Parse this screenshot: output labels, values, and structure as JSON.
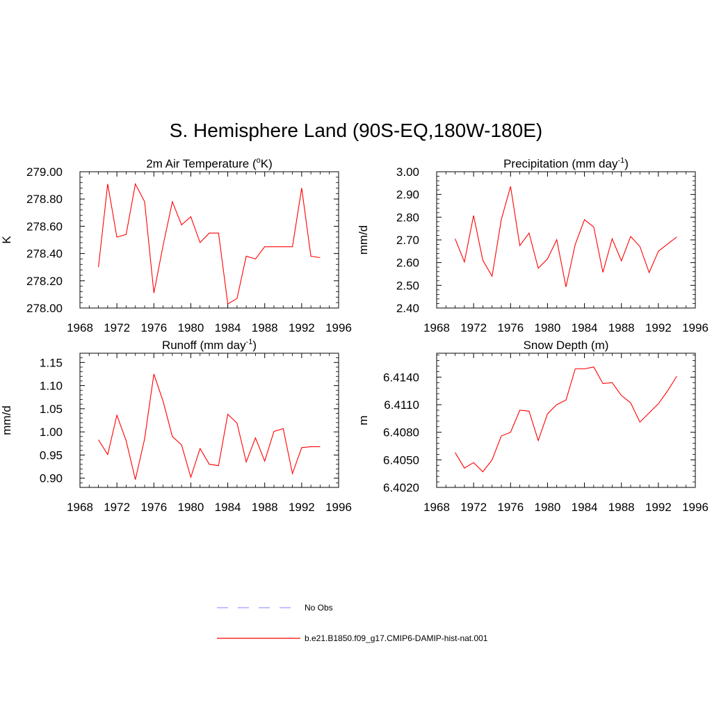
{
  "title": "S. Hemisphere Land (90S-EQ,180W-180E)",
  "legend": {
    "no_obs_label": "No Obs",
    "model_label": "b.e21.B1850.f09_g17.CMIP6-DAMIP-hist-nat.001",
    "no_obs_color": "#9a9aff",
    "model_color": "#ff0000"
  },
  "chart_data": [
    {
      "type": "line",
      "title": "2m Air Temperature (",
      "title_sup": "o",
      "title_tail": "K)",
      "title_sup_pos": "pre",
      "ylabel": "K",
      "xlim": [
        1968,
        1996
      ],
      "x_ticks": [
        1968,
        1972,
        1976,
        1980,
        1984,
        1988,
        1992,
        1996
      ],
      "ylim": [
        278.0,
        279.0
      ],
      "y_ticks": [
        278.0,
        278.2,
        278.4,
        278.6,
        278.8,
        279.0
      ],
      "y_tick_labels": [
        "278.00",
        "278.20",
        "278.40",
        "278.60",
        "278.80",
        "279.00"
      ],
      "x": [
        1970,
        1971,
        1972,
        1973,
        1974,
        1975,
        1976,
        1977,
        1978,
        1979,
        1980,
        1981,
        1982,
        1983,
        1984,
        1985,
        1986,
        1987,
        1988,
        1989,
        1990,
        1991,
        1992,
        1993,
        1994
      ],
      "series": [
        {
          "color": "#ff0000",
          "values": [
            278.3,
            278.91,
            278.52,
            278.54,
            278.91,
            278.78,
            278.11,
            278.46,
            278.78,
            278.61,
            278.67,
            278.48,
            278.55,
            278.55,
            278.03,
            278.07,
            278.38,
            278.36,
            278.45,
            278.45,
            278.45,
            278.45,
            278.88,
            278.38,
            278.37
          ]
        }
      ]
    },
    {
      "type": "line",
      "title": "Precipitation (mm day",
      "title_sup": "-1",
      "title_tail": ")",
      "ylabel": "mm/d",
      "xlim": [
        1968,
        1996
      ],
      "x_ticks": [
        1968,
        1972,
        1976,
        1980,
        1984,
        1988,
        1992,
        1996
      ],
      "ylim": [
        2.4,
        3.0
      ],
      "y_ticks": [
        2.4,
        2.5,
        2.6,
        2.7,
        2.8,
        2.9,
        3.0
      ],
      "y_tick_labels": [
        "2.40",
        "2.50",
        "2.60",
        "2.70",
        "2.80",
        "2.90",
        "3.00"
      ],
      "x": [
        1970,
        1971,
        1972,
        1973,
        1974,
        1975,
        1976,
        1977,
        1978,
        1979,
        1980,
        1981,
        1982,
        1983,
        1984,
        1985,
        1986,
        1987,
        1988,
        1989,
        1990,
        1991,
        1992,
        1993,
        1994
      ],
      "series": [
        {
          "color": "#ff0000",
          "values": [
            2.705,
            2.603,
            2.807,
            2.61,
            2.54,
            2.79,
            2.935,
            2.675,
            2.73,
            2.575,
            2.616,
            2.701,
            2.493,
            2.68,
            2.789,
            2.757,
            2.557,
            2.705,
            2.608,
            2.715,
            2.671,
            2.556,
            2.65,
            2.682,
            2.713
          ]
        }
      ]
    },
    {
      "type": "line",
      "title": "Runoff (mm day",
      "title_sup": "-1",
      "title_tail": ")",
      "ylabel": "mm/d",
      "xlim": [
        1968,
        1996
      ],
      "x_ticks": [
        1968,
        1972,
        1976,
        1980,
        1984,
        1988,
        1992,
        1996
      ],
      "ylim": [
        0.88,
        1.17
      ],
      "y_ticks": [
        0.9,
        0.95,
        1.0,
        1.05,
        1.1,
        1.15
      ],
      "y_tick_labels": [
        "0.90",
        "0.95",
        "1.00",
        "1.05",
        "1.10",
        "1.15"
      ],
      "x": [
        1970,
        1971,
        1972,
        1973,
        1974,
        1975,
        1976,
        1977,
        1978,
        1979,
        1980,
        1981,
        1982,
        1983,
        1984,
        1985,
        1986,
        1987,
        1988,
        1989,
        1990,
        1991,
        1992,
        1993,
        1994
      ],
      "series": [
        {
          "color": "#ff0000",
          "values": [
            0.983,
            0.951,
            1.036,
            0.981,
            0.897,
            0.985,
            1.125,
            1.066,
            0.99,
            0.972,
            0.902,
            0.964,
            0.93,
            0.927,
            1.038,
            1.019,
            0.935,
            0.987,
            0.937,
            1.001,
            1.007,
            0.91,
            0.966,
            0.968,
            0.968
          ]
        }
      ]
    },
    {
      "type": "line",
      "title": "Snow Depth (m)",
      "title_sup": "",
      "title_tail": "",
      "ylabel": "m",
      "xlim": [
        1968,
        1996
      ],
      "x_ticks": [
        1968,
        1972,
        1976,
        1980,
        1984,
        1988,
        1992,
        1996
      ],
      "ylim": [
        6.402,
        6.4166
      ],
      "y_ticks": [
        6.402,
        6.405,
        6.408,
        6.411,
        6.414
      ],
      "y_tick_labels": [
        "6.4020",
        "6.4050",
        "6.4080",
        "6.4110",
        "6.4140"
      ],
      "x": [
        1970,
        1971,
        1972,
        1973,
        1974,
        1975,
        1976,
        1977,
        1978,
        1979,
        1980,
        1981,
        1982,
        1983,
        1984,
        1985,
        1986,
        1987,
        1988,
        1989,
        1990,
        1991,
        1992,
        1993,
        1994
      ],
      "series": [
        {
          "color": "#ff0000",
          "values": [
            6.4058,
            6.4041,
            6.4047,
            6.4037,
            6.405,
            6.4076,
            6.408,
            6.4104,
            6.4103,
            6.4071,
            6.41,
            6.411,
            6.4115,
            6.4149,
            6.4149,
            6.4151,
            6.4133,
            6.4134,
            6.412,
            6.4112,
            6.4091,
            6.4101,
            6.4111,
            6.4125,
            6.4141
          ]
        }
      ]
    }
  ]
}
